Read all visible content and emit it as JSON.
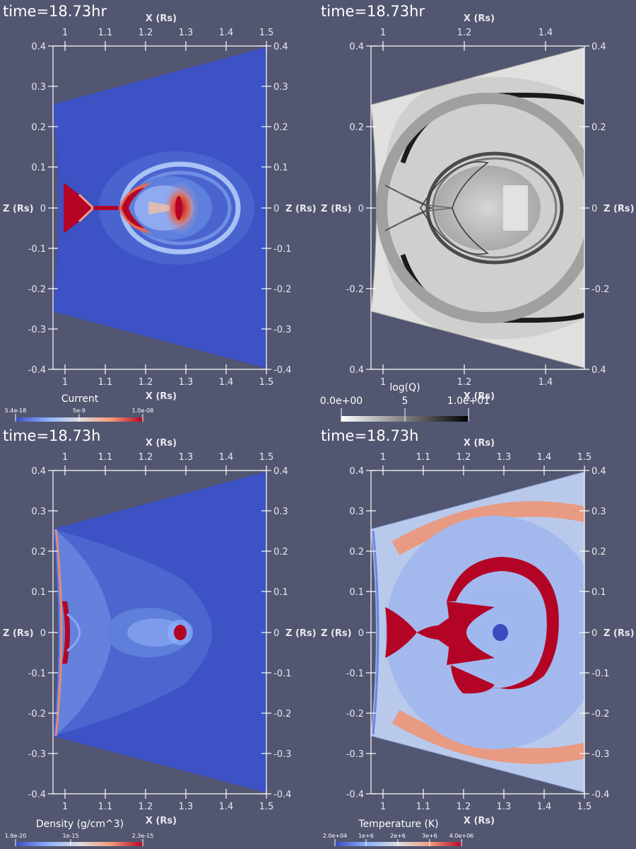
{
  "panels": [
    {
      "id": "current",
      "title": "time=18.73hr",
      "x_label": "X (Rs)",
      "z_label": "Z (Rs)",
      "x_ticks": [
        "1",
        "1.1",
        "1.2",
        "1.3",
        "1.4",
        "1.5"
      ],
      "z_ticks": [
        "0.4",
        "0.3",
        "0.2",
        "0.1",
        "0",
        "-0.1",
        "-0.2",
        "-0.3",
        "-0.4"
      ],
      "colorbar": {
        "title": "Current",
        "labels": [
          "5.4e-18",
          "5e-9",
          "1.0e-08"
        ],
        "colors": [
          "#3b4cc0",
          "#dddddd",
          "#b40426"
        ]
      },
      "colormap": "cool-warm"
    },
    {
      "id": "logq",
      "title": "time=18.73hr",
      "x_label": "X (Rs)",
      "z_label": "Z (Rs)",
      "x_ticks": [
        "1",
        "1.2",
        "1.4"
      ],
      "z_ticks": [
        "0.4",
        "0.2",
        "0",
        "-0.2",
        "0.4"
      ],
      "colorbar": {
        "title": "log(Q)",
        "labels": [
          "0.0e+00",
          "5",
          "1.0e+01"
        ],
        "colors": [
          "#ffffff",
          "#000000"
        ]
      },
      "colormap": "grayscale"
    },
    {
      "id": "density",
      "title": "time=18.73h",
      "x_label": "X (Rs)",
      "z_label": "Z (Rs)",
      "x_ticks": [
        "1",
        "1.1",
        "1.2",
        "1.3",
        "1.4",
        "1.5"
      ],
      "z_ticks": [
        "0.4",
        "0.3",
        "0.2",
        "0.1",
        "0",
        "-0.1",
        "-0.2",
        "-0.3",
        "-0.4"
      ],
      "colorbar": {
        "title": "Density (g/cm^3)",
        "labels": [
          "1.9e-20",
          "1e-15",
          "2.3e-15"
        ],
        "colors": [
          "#3b4cc0",
          "#dddddd",
          "#b40426"
        ]
      },
      "colormap": "cool-warm"
    },
    {
      "id": "temperature",
      "title": "time=18.73h",
      "x_label": "X (Rs)",
      "z_label": "Z (Rs)",
      "x_ticks": [
        "1",
        "1.1",
        "1.2",
        "1.3",
        "1.4",
        "1.5"
      ],
      "z_ticks": [
        "0.4",
        "0.3",
        "0.2",
        "0.1",
        "0",
        "-0.1",
        "-0.2",
        "-0.3",
        "-0.4"
      ],
      "colorbar": {
        "title": "Temperature (K)",
        "labels": [
          "2.0e+04",
          "1e+6",
          "2e+6",
          "3e+6",
          "4.0e+06"
        ],
        "colors": [
          "#3b4cc0",
          "#dddddd",
          "#b40426"
        ]
      },
      "colormap": "cool-warm"
    }
  ],
  "colors": {
    "background": "#525670",
    "cool": "#3b4cc0",
    "warm": "#b40426",
    "mid": "#dddddd",
    "axis": "#ffffff"
  }
}
